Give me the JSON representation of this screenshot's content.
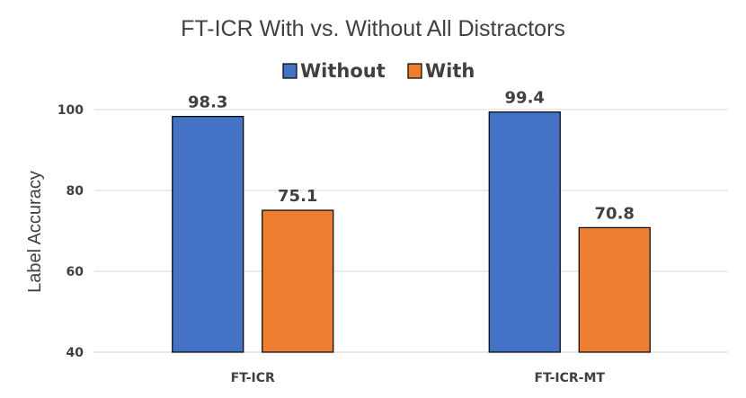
{
  "chart_data": {
    "type": "bar",
    "title": "FT-ICR With vs. Without All Distractors",
    "xlabel": "",
    "ylabel": "Label Accuracy",
    "categories": [
      "FT-ICR",
      "FT-ICR-MT"
    ],
    "series": [
      {
        "name": "Without",
        "values": [
          98.3,
          99.4
        ],
        "color": "#4472C4"
      },
      {
        "name": "With",
        "values": [
          75.1,
          70.8
        ],
        "color": "#ED7D31"
      }
    ],
    "data_labels": [
      [
        "98.3",
        "99.4"
      ],
      [
        "75.1",
        "70.8"
      ]
    ],
    "ylim": [
      40,
      100
    ],
    "yticks": [
      40,
      60,
      80,
      100
    ],
    "ytick_labels": [
      "40",
      "60",
      "80",
      "100"
    ],
    "grid": true,
    "legend_position": "top"
  }
}
